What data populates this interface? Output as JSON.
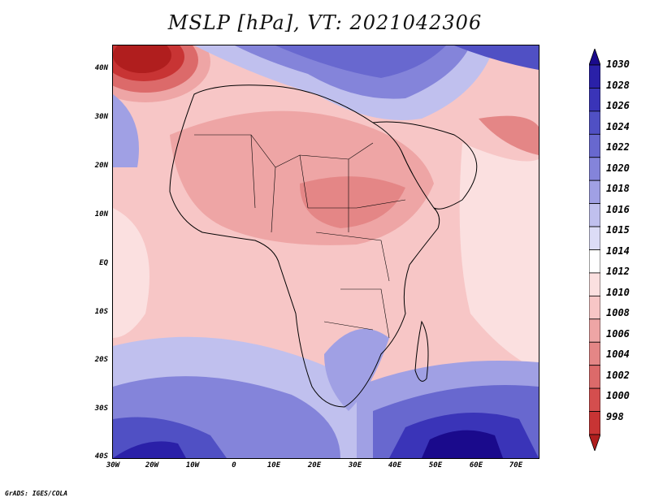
{
  "title": "MSLP [hPa], VT: 2021042306",
  "credit": "GrADS: IGES/COLA",
  "lat_labels": [
    "40N",
    "30N",
    "20N",
    "10N",
    "EQ",
    "10S",
    "20S",
    "30S",
    "40S"
  ],
  "lon_labels": [
    "30W",
    "20W",
    "10W",
    "0",
    "10E",
    "20E",
    "30E",
    "40E",
    "50E",
    "60E",
    "70E"
  ],
  "legend": {
    "levels": [
      "1030",
      "1028",
      "1026",
      "1024",
      "1022",
      "1020",
      "1018",
      "1016",
      "1015",
      "1014",
      "1012",
      "1010",
      "1008",
      "1006",
      "1004",
      "1002",
      "1000",
      "998"
    ],
    "colors": [
      "#1a0a8c",
      "#2a20a8",
      "#3a34b8",
      "#5050c4",
      "#6868cf",
      "#8484da",
      "#a0a0e4",
      "#c0c0ee",
      "#dcdcf6",
      "#ffffff",
      "#fbe0e0",
      "#f7c6c6",
      "#eea5a5",
      "#e48686",
      "#dc6a6a",
      "#d44e4e",
      "#c83434",
      "#b01e1e"
    ]
  }
}
